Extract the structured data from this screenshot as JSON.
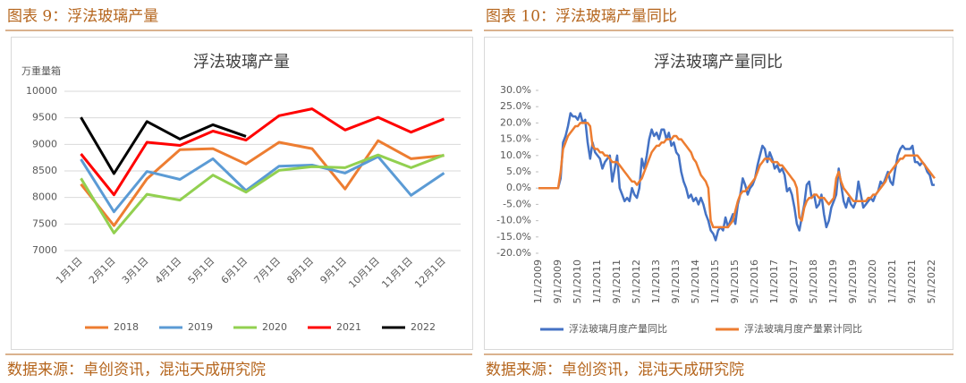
{
  "captions": [
    "图表 9：浮法玻璃产量",
    "图表 10：浮法玻璃产量同比"
  ],
  "sources": [
    "数据来源：卓创资讯，混沌天成研究院",
    "数据来源：卓创资讯，混沌天成研究院"
  ],
  "chart_data": [
    {
      "type": "line",
      "title": "浮法玻璃产量",
      "y_label": "万重量箱",
      "categories": [
        "1月1日",
        "2月1日",
        "3月1日",
        "4月1日",
        "5月1日",
        "6月1日",
        "7月1日",
        "8月1日",
        "9月1日",
        "10月1日",
        "11月1日",
        "12月1日"
      ],
      "series": [
        {
          "name": "2018",
          "color": "#ed7d31",
          "values": [
            8250,
            7470,
            8350,
            8900,
            8920,
            8630,
            9040,
            8920,
            8160,
            9070,
            8730,
            8790
          ]
        },
        {
          "name": "2019",
          "color": "#5b9bd5",
          "values": [
            8720,
            7730,
            8490,
            8340,
            8730,
            8130,
            8590,
            8610,
            8460,
            8770,
            8040,
            8460
          ]
        },
        {
          "name": "2020",
          "color": "#92d050",
          "values": [
            8360,
            7330,
            8060,
            7950,
            8420,
            8100,
            8510,
            8580,
            8560,
            8800,
            8560,
            8800
          ]
        },
        {
          "name": "2021",
          "color": "#ff0000",
          "values": [
            8820,
            8050,
            9040,
            8980,
            9250,
            9080,
            9540,
            9670,
            9270,
            9510,
            9230,
            9480
          ]
        },
        {
          "name": "2022",
          "color": "#000000",
          "values": [
            9510,
            8450,
            9430,
            9100,
            9370,
            9150,
            null,
            null,
            null,
            null,
            null,
            null
          ]
        }
      ],
      "ylim": [
        7000,
        10000
      ],
      "yticks": [
        7000,
        7500,
        8000,
        8500,
        9000,
        9500,
        10000
      ],
      "grid": true,
      "legend": "bottom"
    },
    {
      "type": "line",
      "title": "浮法玻璃产量同比",
      "categories": [
        "1/1/2009",
        null,
        null,
        null,
        null,
        null,
        null,
        null,
        "9/1/2009",
        null,
        null,
        null,
        null,
        null,
        null,
        null,
        "5/1/2010",
        null,
        null,
        null,
        null,
        null,
        null,
        null,
        "1/1/2011",
        null,
        null,
        null,
        null,
        null,
        null,
        null,
        "9/1/2011",
        null,
        null,
        null,
        null,
        null,
        null,
        null,
        "5/1/2012",
        null,
        null,
        null,
        null,
        null,
        null,
        null,
        "1/1/2013",
        null,
        null,
        null,
        null,
        null,
        null,
        null,
        "9/1/2013",
        null,
        null,
        null,
        null,
        null,
        null,
        null,
        "5/1/2014",
        null,
        null,
        null,
        null,
        null,
        null,
        null,
        "1/1/2015",
        null,
        null,
        null,
        null,
        null,
        null,
        null,
        "9/1/2015",
        null,
        null,
        null,
        null,
        null,
        null,
        null,
        "5/1/2016",
        null,
        null,
        null,
        null,
        null,
        null,
        null,
        "1/1/2017",
        null,
        null,
        null,
        null,
        null,
        null,
        null,
        "9/1/2017",
        null,
        null,
        null,
        null,
        null,
        null,
        null,
        "5/1/2018",
        null,
        null,
        null,
        null,
        null,
        null,
        null,
        "1/1/2019",
        null,
        null,
        null,
        null,
        null,
        null,
        null,
        "9/1/2019",
        null,
        null,
        null,
        null,
        null,
        null,
        null,
        "5/1/2020",
        null,
        null,
        null,
        null,
        null,
        null,
        null,
        "1/1/2021",
        null,
        null,
        null,
        null,
        null,
        null,
        null,
        "9/1/2021",
        null,
        null,
        null,
        null,
        null,
        null,
        null,
        "5/1/2022",
        null
      ],
      "series": [
        {
          "name": "浮法玻璃月度产量同比",
          "color": "#4472c4",
          "values": [
            0,
            0,
            0,
            0,
            0,
            0,
            0,
            0,
            0,
            3,
            14,
            16,
            19,
            23,
            22,
            22,
            21,
            23,
            20,
            21,
            14,
            9,
            14,
            11,
            10,
            9,
            6,
            8,
            9,
            10,
            2,
            6,
            10,
            0,
            -2,
            -4,
            -3,
            -4,
            0,
            -2,
            -3,
            0,
            9,
            6,
            10,
            15,
            18,
            16,
            17,
            15,
            18,
            18,
            15,
            17,
            13,
            14,
            11,
            10,
            5,
            2,
            0,
            -3,
            -2,
            -4,
            -3,
            -5,
            -3,
            -5,
            -8,
            -10,
            -13,
            -14,
            -16,
            -13,
            -12,
            -13,
            -9,
            -12,
            -10,
            -8,
            -11,
            -5,
            -2,
            3,
            1,
            -2,
            0,
            1,
            3,
            7,
            10,
            13,
            12,
            8,
            11,
            9,
            6,
            7,
            5,
            6,
            4,
            -1,
            0,
            -2,
            -6,
            -11,
            -13,
            -9,
            -5,
            1,
            2,
            -3,
            -2,
            -6,
            -5,
            -2,
            -8,
            -12,
            -10,
            -6,
            -4,
            -2,
            6,
            1,
            -4,
            -6,
            -3,
            -5,
            -6,
            -4,
            2,
            -2,
            -6,
            -5,
            -4,
            -3,
            -4,
            -2,
            -1,
            2,
            1,
            3,
            5,
            2,
            1,
            6,
            10,
            12,
            13,
            12,
            12,
            12,
            13,
            8,
            8,
            7,
            8,
            7,
            5,
            4,
            1,
            1
          ]
        },
        {
          "name": "浮法玻璃月度产量累计同比",
          "color": "#ed7d31",
          "values": [
            0,
            0,
            0,
            0,
            0,
            0,
            0,
            0,
            0,
            5,
            12,
            14,
            16,
            17,
            18,
            19,
            19,
            20,
            20,
            20,
            20,
            19,
            13,
            12,
            12,
            11,
            11,
            10,
            10,
            9,
            8,
            8,
            8,
            7,
            6,
            5,
            4,
            3,
            2,
            2,
            1,
            2,
            3,
            5,
            7,
            9,
            11,
            12,
            13,
            13,
            14,
            14,
            15,
            15,
            15,
            16,
            16,
            15,
            15,
            14,
            13,
            12,
            11,
            9,
            8,
            6,
            4,
            3,
            2,
            0,
            -10,
            -12,
            -12,
            -12,
            -12,
            -12,
            -12,
            -12,
            -11,
            -10,
            -7,
            -4,
            -2,
            -1,
            -1,
            0,
            1,
            2,
            3,
            5,
            7,
            8,
            9,
            9,
            9,
            8,
            8,
            8,
            7,
            7,
            6,
            5,
            4,
            3,
            2,
            0,
            -9,
            -10,
            -6,
            -4,
            -3,
            -3,
            -2,
            -2,
            -3,
            -3,
            -3,
            -4,
            -5,
            -4,
            -3,
            3,
            5,
            2,
            0,
            -1,
            -2,
            -3,
            -4,
            -4,
            -4,
            -4,
            -4,
            -4,
            -3,
            -3,
            -2,
            -2,
            -1,
            0,
            1,
            2,
            4,
            5,
            6,
            7,
            8,
            9,
            9,
            10,
            10,
            10,
            10,
            10,
            10,
            9,
            8,
            7,
            6,
            5,
            4,
            3
          ]
        }
      ],
      "ylim": [
        -20,
        30
      ],
      "yticks": [
        {
          "value": -20,
          "label": "-20.0%"
        },
        {
          "value": -15,
          "label": "-15.0%"
        },
        {
          "value": -10,
          "label": "-10.0%"
        },
        {
          "value": -5,
          "label": "-5.0%"
        },
        {
          "value": 0,
          "label": "0.0%"
        },
        {
          "value": 5,
          "label": "5.0%"
        },
        {
          "value": 10,
          "label": "10.0%"
        },
        {
          "value": 15,
          "label": "15.0%"
        },
        {
          "value": 20,
          "label": "20.0%"
        },
        {
          "value": 25,
          "label": "25.0%"
        },
        {
          "value": 30,
          "label": "30.0%"
        }
      ],
      "grid": false,
      "legend": "bottom"
    }
  ]
}
